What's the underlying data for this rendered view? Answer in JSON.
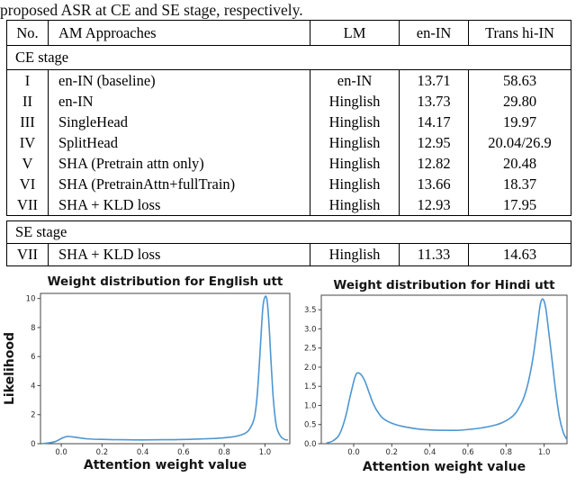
{
  "caption": "proposed ASR at CE and SE stage, respectively.",
  "table": {
    "headers": [
      "No.",
      "AM Approaches",
      "LM",
      "en-IN",
      "Trans hi-IN"
    ],
    "sections": [
      {
        "label": "CE stage",
        "rows": [
          [
            "I",
            "en-IN (baseline)",
            "en-IN",
            "13.71",
            "58.63"
          ],
          [
            "II",
            "en-IN",
            "Hinglish",
            "13.73",
            "29.80"
          ],
          [
            "III",
            "SingleHead",
            "Hinglish",
            "14.17",
            "19.97"
          ],
          [
            "IV",
            "SplitHead",
            "Hinglish",
            "12.95",
            "20.04/26.9"
          ],
          [
            "V",
            "SHA (Pretrain attn only)",
            "Hinglish",
            "12.82",
            "20.48"
          ],
          [
            "VI",
            "SHA (PretrainAttn+fullTrain)",
            "Hinglish",
            "13.66",
            "18.37"
          ],
          [
            "VII",
            "SHA + KLD loss",
            "Hinglish",
            "12.93",
            "17.95"
          ]
        ]
      },
      {
        "label": "SE stage",
        "rows": [
          [
            "VII",
            "SHA + KLD loss",
            "Hinglish",
            "11.33",
            "14.63"
          ]
        ]
      }
    ]
  },
  "chart_data": [
    {
      "type": "line",
      "title": "Weight distribution for English utt",
      "xlabel": "Attention weight value",
      "ylabel": "Likelihood",
      "xlim": [
        -0.102,
        1.122
      ],
      "ylim": [
        0,
        10.35
      ],
      "xticks": [
        0.0,
        0.2,
        0.4,
        0.6,
        0.8,
        1.0
      ],
      "xtick_labels": [
        "0.0",
        "0.2",
        "0.4",
        "0.6",
        "0.8",
        "1.0"
      ],
      "yticks": [
        0,
        2,
        4,
        6,
        8,
        10
      ],
      "ytick_labels": [
        "0",
        "2",
        "4",
        "6",
        "8",
        "10"
      ],
      "grid": false,
      "legend": null,
      "line_color": "#4E96D1",
      "series": [
        {
          "name": "English utt attention-weight likelihood",
          "x": [
            -0.09,
            -0.06,
            -0.03,
            -0.01,
            0.01,
            0.03,
            0.05,
            0.08,
            0.12,
            0.16,
            0.22,
            0.3,
            0.4,
            0.5,
            0.6,
            0.68,
            0.75,
            0.8,
            0.84,
            0.87,
            0.9,
            0.92,
            0.94,
            0.95,
            0.96,
            0.97,
            0.98,
            0.99,
            1.0,
            1.01,
            1.02,
            1.03,
            1.04,
            1.05,
            1.06,
            1.08,
            1.1,
            1.11
          ],
          "y": [
            0.02,
            0.06,
            0.14,
            0.28,
            0.42,
            0.5,
            0.48,
            0.42,
            0.35,
            0.31,
            0.29,
            0.27,
            0.26,
            0.27,
            0.29,
            0.32,
            0.36,
            0.41,
            0.47,
            0.55,
            0.7,
            0.92,
            1.42,
            1.92,
            3.0,
            4.9,
            7.3,
            9.4,
            10.1,
            9.9,
            8.2,
            5.6,
            3.3,
            1.8,
            1.0,
            0.45,
            0.28,
            0.26
          ]
        }
      ]
    },
    {
      "type": "line",
      "title": "Weight distribution for Hindi utt",
      "xlabel": "Attention weight value",
      "ylabel": "",
      "xlim": [
        -0.17,
        1.12
      ],
      "ylim": [
        0,
        3.88
      ],
      "xticks": [
        0.0,
        0.2,
        0.4,
        0.6,
        0.8,
        1.0
      ],
      "xtick_labels": [
        "0.0",
        "0.2",
        "0.4",
        "0.6",
        "0.8",
        "1.0"
      ],
      "yticks": [
        0,
        0.5,
        1.0,
        1.5,
        2.0,
        2.5,
        3.0,
        3.5
      ],
      "ytick_labels": [
        "0.0",
        "0.5",
        "1.0",
        "1.5",
        "2.0",
        "2.5",
        "3.0",
        "3.5"
      ],
      "grid": false,
      "legend": null,
      "line_color": "#4E96D1",
      "series": [
        {
          "name": "Hindi utt attention-weight likelihood",
          "x": [
            -0.14,
            -0.11,
            -0.08,
            -0.06,
            -0.04,
            -0.02,
            0.0,
            0.01,
            0.02,
            0.04,
            0.06,
            0.08,
            0.1,
            0.12,
            0.15,
            0.18,
            0.22,
            0.27,
            0.33,
            0.4,
            0.47,
            0.55,
            0.62,
            0.68,
            0.73,
            0.78,
            0.82,
            0.85,
            0.88,
            0.9,
            0.92,
            0.94,
            0.96,
            0.97,
            0.98,
            0.99,
            1.0,
            1.01,
            1.02,
            1.04,
            1.06,
            1.08,
            1.1,
            1.12
          ],
          "y": [
            0.02,
            0.07,
            0.2,
            0.42,
            0.75,
            1.2,
            1.62,
            1.78,
            1.85,
            1.8,
            1.62,
            1.35,
            1.08,
            0.88,
            0.68,
            0.58,
            0.5,
            0.44,
            0.39,
            0.36,
            0.35,
            0.35,
            0.38,
            0.42,
            0.47,
            0.55,
            0.66,
            0.8,
            1.05,
            1.3,
            1.68,
            2.2,
            2.9,
            3.3,
            3.65,
            3.78,
            3.72,
            3.5,
            3.1,
            2.25,
            1.4,
            0.7,
            0.3,
            0.1
          ]
        }
      ]
    }
  ]
}
